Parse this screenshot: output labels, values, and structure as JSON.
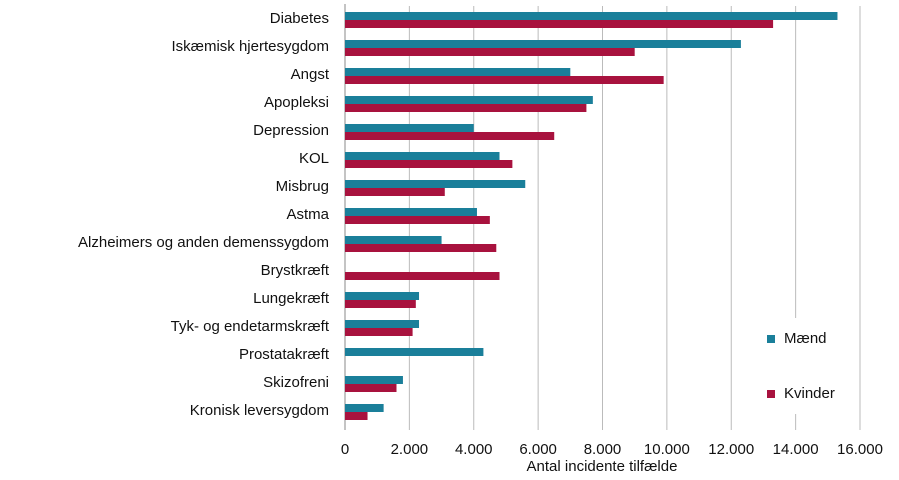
{
  "chart_data": {
    "type": "hbar",
    "xlabel": "Antal incidente tilfælde",
    "categories": [
      "Diabetes",
      "Iskæmisk hjertesygdom",
      "Angst",
      "Apopleksi",
      "Depression",
      "KOL",
      "Misbrug",
      "Astma",
      "Alzheimers og anden demenssygdom",
      "Brystkræft",
      "Lungekræft",
      "Tyk- og endetarmskræft",
      "Prostatakræft",
      "Skizofreni",
      "Kronisk leversygdom"
    ],
    "series": [
      {
        "name": "Mænd",
        "color": "#1a7f9a",
        "values": [
          15300,
          12300,
          7000,
          7700,
          4000,
          4800,
          5600,
          4100,
          3000,
          0,
          2300,
          2300,
          4300,
          1800,
          1200
        ]
      },
      {
        "name": "Kvinder",
        "color": "#a8123e",
        "values": [
          13300,
          9000,
          9900,
          7500,
          6500,
          5200,
          3100,
          4500,
          4700,
          4800,
          2200,
          2100,
          0,
          1600,
          700
        ]
      }
    ],
    "xlim": [
      0,
      16000
    ],
    "xticks": [
      0,
      {
        "value": 2000,
        "label": "2.000"
      },
      {
        "value": 4000,
        "label": "4.000"
      },
      {
        "value": 6000,
        "label": "6.000"
      },
      {
        "value": 8000,
        "label": "8.000"
      },
      {
        "value": 10000,
        "label": "10.000"
      },
      {
        "value": 12000,
        "label": "12.000"
      },
      {
        "value": 14000,
        "label": "14.000"
      },
      {
        "value": 16000,
        "label": "16.000"
      }
    ],
    "grid": true,
    "legend": "lower right"
  }
}
